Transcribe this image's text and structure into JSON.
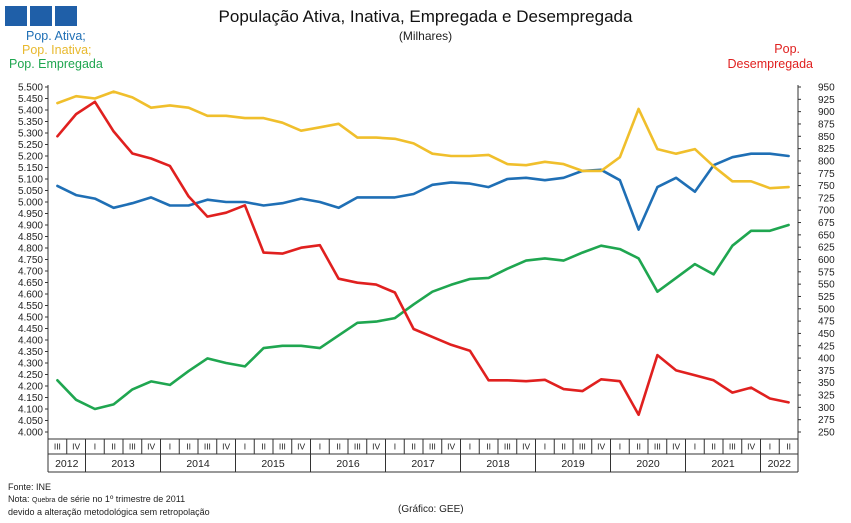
{
  "header": {
    "title": "População Ativa, Inativa, Empregada e Desempregada",
    "subtitle": "(Milhares)",
    "legend": {
      "ativa": "Pop. Ativa;",
      "inativa": "Pop. Inativa;",
      "empregada": "Pop. Empregada",
      "desempregada_line1": "Pop.",
      "desempregada_line2": "Desempregada"
    }
  },
  "footer": {
    "fonte": "Fonte: INE",
    "nota_prefix": "Nota:",
    "nota_small": "Quebra",
    "nota_rest": "de série no 1º trimestre de 2011",
    "nota2": "devido a alteração metodológica sem retropolação",
    "grafico": "(Gráfico: GEE)"
  },
  "colors": {
    "ativa": "#1f6fb5",
    "inativa": "#f0bf2c",
    "empregada": "#1fa650",
    "desempregada": "#e0201f",
    "logo": "#1f5fa8"
  },
  "chart_data": {
    "type": "line",
    "title": "População Ativa, Inativa, Empregada e Desempregada",
    "subtitle": "(Milhares)",
    "x_quarter_labels": [
      "III",
      "IV",
      "I",
      "II",
      "III",
      "IV",
      "I",
      "II",
      "III",
      "IV",
      "I",
      "II",
      "III",
      "IV",
      "I",
      "II",
      "III",
      "IV",
      "I",
      "II",
      "III",
      "IV",
      "I",
      "II",
      "III",
      "IV",
      "I",
      "II",
      "III",
      "IV",
      "I",
      "II",
      "III",
      "IV",
      "I",
      "II",
      "III",
      "IV",
      "I",
      "II"
    ],
    "x_year_labels": [
      {
        "year": "2012",
        "quarters": 2
      },
      {
        "year": "2013",
        "quarters": 4
      },
      {
        "year": "2014",
        "quarters": 4
      },
      {
        "year": "2015",
        "quarters": 4
      },
      {
        "year": "2016",
        "quarters": 4
      },
      {
        "year": "2017",
        "quarters": 4
      },
      {
        "year": "2018",
        "quarters": 4
      },
      {
        "year": "2019",
        "quarters": 4
      },
      {
        "year": "2020",
        "quarters": 4
      },
      {
        "year": "2021",
        "quarters": 4
      },
      {
        "year": "2022",
        "quarters": 2
      }
    ],
    "y_left": {
      "min": 4000,
      "max": 5500,
      "step": 50,
      "tick_labels": [
        "4.000",
        "4.050",
        "4.100",
        "4.150",
        "4.200",
        "4.250",
        "4.300",
        "4.350",
        "4.400",
        "4.450",
        "4.500",
        "4.550",
        "4.600",
        "4.650",
        "4.700",
        "4.750",
        "4.800",
        "4.850",
        "4.900",
        "4.950",
        "5.000",
        "5.050",
        "5.100",
        "5.150",
        "5.200",
        "5.250",
        "5.300",
        "5.350",
        "5.400",
        "5.450",
        "5.500"
      ]
    },
    "y_right": {
      "min": 250,
      "max": 950,
      "step": 25,
      "tick_labels": [
        "250",
        "275",
        "300",
        "325",
        "350",
        "375",
        "400",
        "425",
        "450",
        "475",
        "500",
        "525",
        "550",
        "575",
        "600",
        "625",
        "650",
        "675",
        "700",
        "725",
        "750",
        "775",
        "800",
        "825",
        "850",
        "875",
        "900",
        "925",
        "950"
      ]
    },
    "grid": false,
    "series": [
      {
        "name": "Pop. Ativa;",
        "axis": "left",
        "values": [
          5070,
          5030,
          5015,
          4975,
          4995,
          5020,
          4985,
          4985,
          5010,
          5000,
          5000,
          4985,
          4995,
          5015,
          5000,
          4975,
          5020,
          5020,
          5020,
          5035,
          5075,
          5085,
          5080,
          5065,
          5100,
          5105,
          5095,
          5105,
          5135,
          5140,
          5095,
          4880,
          5065,
          5105,
          5045,
          5160,
          5195,
          5210,
          5210,
          5200
        ]
      },
      {
        "name": "Pop. Inativa;",
        "axis": "left",
        "values": [
          5430,
          5460,
          5450,
          5480,
          5455,
          5410,
          5420,
          5410,
          5375,
          5375,
          5365,
          5365,
          5345,
          5310,
          5325,
          5340,
          5280,
          5280,
          5275,
          5255,
          5210,
          5200,
          5200,
          5205,
          5165,
          5160,
          5175,
          5165,
          5135,
          5135,
          5195,
          5405,
          5230,
          5210,
          5230,
          5155,
          5090,
          5090,
          5060,
          5065
        ]
      },
      {
        "name": "Pop. Empregada",
        "axis": "left",
        "values": [
          4225,
          4140,
          4100,
          4120,
          4185,
          4220,
          4205,
          4265,
          4320,
          4300,
          4285,
          4365,
          4375,
          4375,
          4365,
          4420,
          4475,
          4480,
          4495,
          4555,
          4610,
          4640,
          4665,
          4670,
          4710,
          4745,
          4755,
          4745,
          4780,
          4810,
          4795,
          4755,
          4610,
          4670,
          4730,
          4685,
          4810,
          4875,
          4875,
          4900
        ]
      },
      {
        "name": "Pop. Desempregada",
        "axis": "right",
        "values": [
          850,
          895,
          920,
          860,
          815,
          805,
          790,
          728,
          687,
          695,
          710,
          614,
          612,
          624,
          629,
          561,
          553,
          549,
          533,
          459,
          443,
          427,
          415,
          355,
          355,
          353,
          356,
          337,
          333,
          357,
          353,
          285,
          406,
          375,
          365,
          355,
          330,
          340,
          318,
          310
        ]
      }
    ]
  }
}
